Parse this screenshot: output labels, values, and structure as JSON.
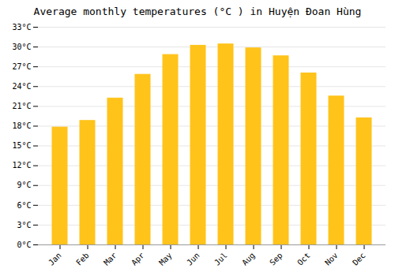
{
  "chart_data": {
    "type": "bar",
    "title": "Average monthly temperatures (°C ) in Huyện Đoan Hùng",
    "categories": [
      "Jan",
      "Feb",
      "Mar",
      "Apr",
      "May",
      "Jun",
      "Jul",
      "Aug",
      "Sep",
      "Oct",
      "Nov",
      "Dec"
    ],
    "values": [
      17.8,
      18.8,
      22.2,
      25.8,
      28.8,
      30.2,
      30.4,
      29.8,
      28.6,
      26.0,
      22.5,
      19.2
    ],
    "color": "#FFC31A",
    "ylim": [
      0,
      33
    ],
    "yticks": [
      {
        "value": 0,
        "label": "0°C"
      },
      {
        "value": 3,
        "label": "3°C"
      },
      {
        "value": 6,
        "label": "6°C"
      },
      {
        "value": 9,
        "label": "9°C"
      },
      {
        "value": 12,
        "label": "12°C"
      },
      {
        "value": 15,
        "label": "15°C"
      },
      {
        "value": 18,
        "label": "18°C"
      },
      {
        "value": 21,
        "label": "21°C"
      },
      {
        "value": 24,
        "label": "24°C"
      },
      {
        "value": 27,
        "label": "27°C"
      },
      {
        "value": 30,
        "label": "30°C"
      },
      {
        "value": 33,
        "label": "33°C"
      }
    ],
    "grid": true
  }
}
